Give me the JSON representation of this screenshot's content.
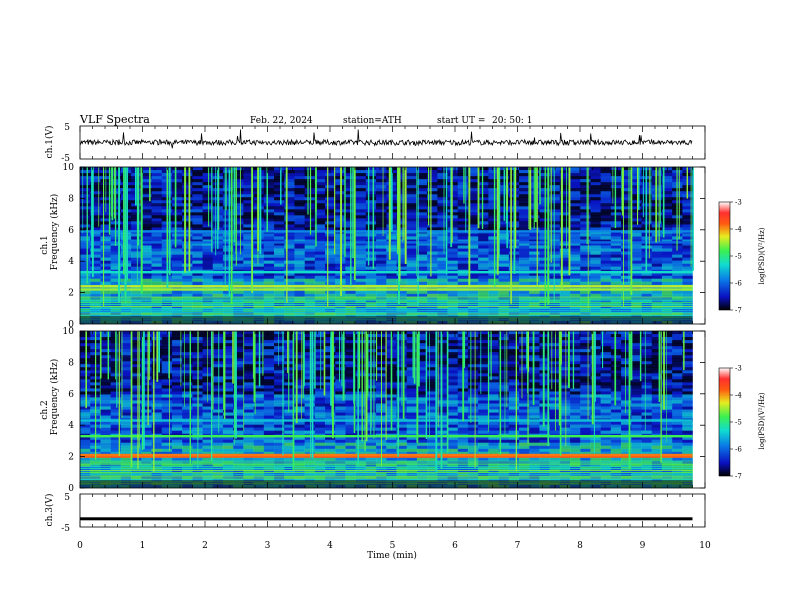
{
  "header": {
    "title": "VLF  Spectra",
    "date": "Feb. 22, 2024",
    "station": "station=ATH",
    "start_label": "start  UT  =",
    "start_time": "20: 50: 1"
  },
  "chart_data": [
    {
      "type": "line",
      "panel": "ch1-waveform",
      "ylabel": "ch.1(V)",
      "yticks": [
        "5",
        "-5"
      ],
      "ylim": [
        -5,
        5
      ],
      "xlim": [
        0,
        10
      ],
      "baseline_value": 0,
      "data_end_min": 9.8
    },
    {
      "type": "heatmap",
      "panel": "ch1-spectrogram",
      "ylabel_channel": "ch.1",
      "ylabel": "Frequency  (kHz)",
      "yticks": [
        "0",
        "2",
        "4",
        "6",
        "8",
        "10"
      ],
      "ylim": [
        0,
        10
      ],
      "xlim": [
        0,
        10
      ],
      "colorbar": {
        "label": "log(PSD)(V²/Hz)",
        "ticks": [
          "-3",
          "-4",
          "-5",
          "-6",
          "-7"
        ],
        "range": [
          -7,
          -3
        ]
      },
      "bands_khz": [
        {
          "freq": 2.2,
          "level": -4.5
        },
        {
          "freq": 2.4,
          "level": -4.4
        },
        {
          "freq": 3.3,
          "level": -5.3
        },
        {
          "freq": 5.2,
          "level": -6.0
        },
        {
          "freq": 5.9,
          "level": -5.8
        }
      ]
    },
    {
      "type": "heatmap",
      "panel": "ch2-spectrogram",
      "ylabel_channel": "ch.2",
      "ylabel": "Frequency  (kHz)",
      "yticks": [
        "0",
        "2",
        "4",
        "6",
        "8",
        "10"
      ],
      "ylim": [
        0,
        10
      ],
      "xlim": [
        0,
        10
      ],
      "colorbar": {
        "label": "log(PSD)(V²/Hz)",
        "ticks": [
          "-3",
          "-4",
          "-5",
          "-6",
          "-7"
        ],
        "range": [
          -7,
          -3
        ]
      },
      "bands_khz": [
        {
          "freq": 2.0,
          "level": -3.8
        },
        {
          "freq": 2.1,
          "level": -3.9
        },
        {
          "freq": 3.3,
          "level": -4.8
        },
        {
          "freq": 4.3,
          "level": -5.5
        }
      ]
    },
    {
      "type": "line",
      "panel": "ch3-waveform",
      "ylabel": "ch.3(V)",
      "yticks": [
        "5",
        "-5"
      ],
      "ylim": [
        -5,
        5
      ],
      "xlim": [
        0,
        10
      ],
      "baseline_value": -2.5,
      "data_end_min": 9.8
    }
  ],
  "x_axis": {
    "label": "Time  (min)",
    "ticks": [
      "0",
      "1",
      "2",
      "3",
      "4",
      "5",
      "6",
      "7",
      "8",
      "9",
      "10"
    ]
  },
  "colors": {
    "spectrogram_background": "#0a1cc8",
    "waveform": "#000000"
  }
}
